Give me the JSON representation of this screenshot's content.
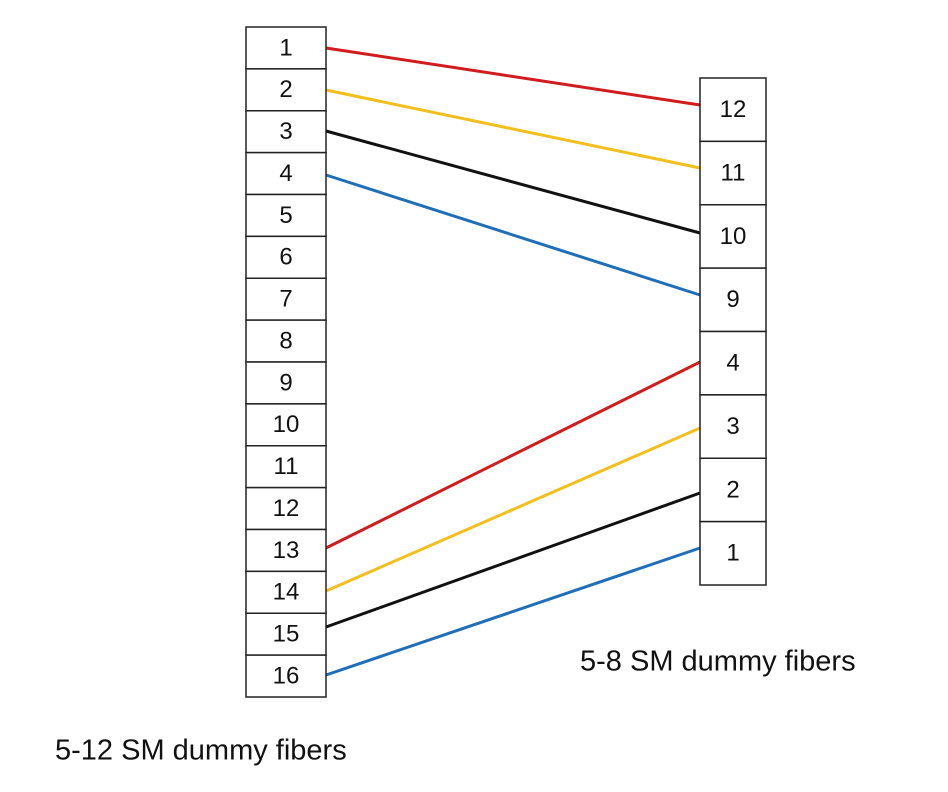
{
  "left_panel": {
    "ports": [
      "1",
      "2",
      "3",
      "4",
      "5",
      "6",
      "7",
      "8",
      "9",
      "10",
      "11",
      "12",
      "13",
      "14",
      "15",
      "16"
    ],
    "caption": "5-12 SM dummy fibers"
  },
  "right_panel": {
    "ports": [
      "12",
      "11",
      "10",
      "9",
      "4",
      "3",
      "2",
      "1"
    ],
    "caption": "5-8 SM dummy fibers"
  }
}
